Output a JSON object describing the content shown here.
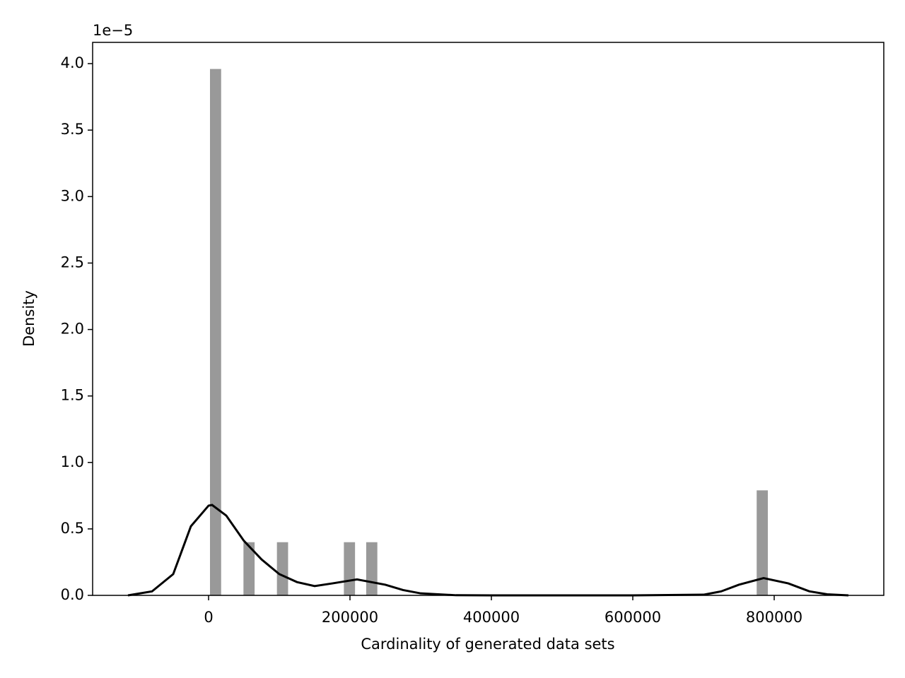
{
  "chart_data": {
    "type": "histogram",
    "xlabel": "Cardinality of generated data sets",
    "ylabel": "Density",
    "y_offset_label": "1e−5",
    "bins": [
      2000,
      17780,
      33560,
      49340,
      65120,
      80900,
      96680,
      112460,
      128240,
      144020,
      159800,
      175580,
      191360,
      207140,
      222920,
      238700,
      254480,
      270260,
      286040,
      301820,
      317600,
      333380,
      349160,
      364940,
      380720,
      396500,
      412280,
      428060,
      443840,
      459620,
      475400,
      491180,
      506960,
      522740,
      538520,
      554300,
      570080,
      585860,
      601640,
      617420,
      633200,
      648980,
      664760,
      680540,
      696320,
      712100,
      727880,
      743660,
      759440,
      775220,
      791000
    ],
    "values": [
      3.96,
      0,
      0,
      0.4,
      0,
      0,
      0.4,
      0,
      0,
      0,
      0,
      0,
      0.4,
      0,
      0.4,
      0,
      0,
      0,
      0,
      0,
      0,
      0,
      0,
      0,
      0,
      0,
      0,
      0,
      0,
      0,
      0,
      0,
      0,
      0,
      0,
      0,
      0,
      0,
      0,
      0,
      0,
      0,
      0,
      0,
      0,
      0,
      0,
      0,
      0,
      0.79
    ],
    "color": "#999999",
    "kde": {
      "x": [
        -114000,
        -80000,
        -50000,
        -25000,
        0,
        5000,
        25000,
        50000,
        75000,
        100000,
        125000,
        150000,
        175000,
        210000,
        250000,
        275000,
        300000,
        350000,
        400000,
        500000,
        600000,
        700000,
        725000,
        750000,
        785000,
        820000,
        850000,
        875000,
        905000
      ],
      "values": [
        0,
        0.03,
        0.16,
        0.52,
        0.675,
        0.68,
        0.6,
        0.41,
        0.27,
        0.16,
        0.1,
        0.07,
        0.09,
        0.12,
        0.08,
        0.04,
        0.015,
        0.001,
        0,
        0,
        0,
        0.005,
        0.03,
        0.08,
        0.13,
        0.09,
        0.03,
        0.008,
        0
      ],
      "color": "#000000"
    },
    "xlim": [
      -164000,
      955000
    ],
    "ylim": [
      0,
      4.16
    ],
    "xticks": [
      0,
      200000,
      400000,
      600000,
      800000
    ],
    "yticks": [
      {
        "value": 0,
        "label": "0.0"
      },
      0.5,
      {
        "value": 1,
        "label": "1.0"
      },
      1.5,
      {
        "value": 2,
        "label": "2.0"
      },
      2.5,
      {
        "value": 3,
        "label": "3.0"
      },
      3.5,
      {
        "value": 4,
        "label": "4.0"
      }
    ]
  }
}
